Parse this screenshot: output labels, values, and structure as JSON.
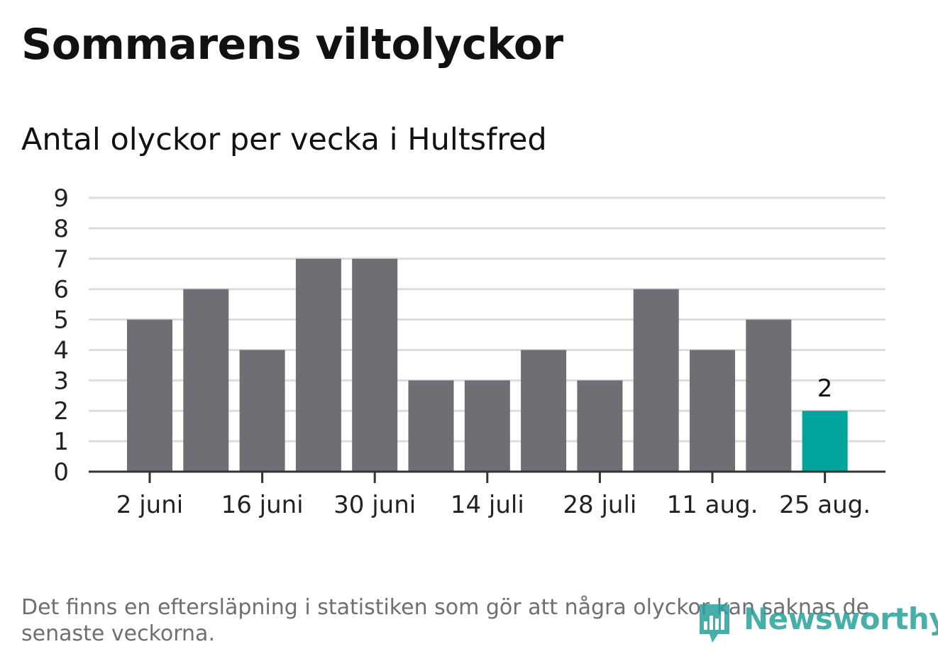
{
  "title": "Sommarens viltolyckor",
  "subtitle": "Antal olyckor per vecka i Hultsfred",
  "footnote": "Det finns en eftersläpning i statistiken som gör att några olyckor kan saknas de senaste veckorna.",
  "logo": {
    "text": "Newsworthy",
    "icon": "bar-chart-speech-bubble-icon"
  },
  "colors": {
    "bar": "#6f6e74",
    "highlight": "#00a49a",
    "grid": "#dcdcdc",
    "axis": "#333333"
  },
  "chart_data": {
    "type": "bar",
    "title": "Antal olyckor per vecka i Hultsfred",
    "xlabel": "",
    "ylabel": "",
    "ylim": [
      0,
      9
    ],
    "yticks": [
      0,
      1,
      2,
      3,
      4,
      5,
      6,
      7,
      8,
      9
    ],
    "grid": true,
    "values": [
      5,
      6,
      4,
      7,
      7,
      3,
      3,
      4,
      3,
      6,
      4,
      5,
      2
    ],
    "xtick_labels": [
      {
        "index": 0,
        "label": "2 juni"
      },
      {
        "index": 2,
        "label": "16 juni"
      },
      {
        "index": 4,
        "label": "30 juni"
      },
      {
        "index": 6,
        "label": "14 juli"
      },
      {
        "index": 8,
        "label": "28 juli"
      },
      {
        "index": 10,
        "label": "11 aug."
      },
      {
        "index": 12,
        "label": "25 aug."
      }
    ],
    "highlight_index": 12,
    "data_labels": [
      {
        "index": 12,
        "text": "2"
      }
    ]
  }
}
